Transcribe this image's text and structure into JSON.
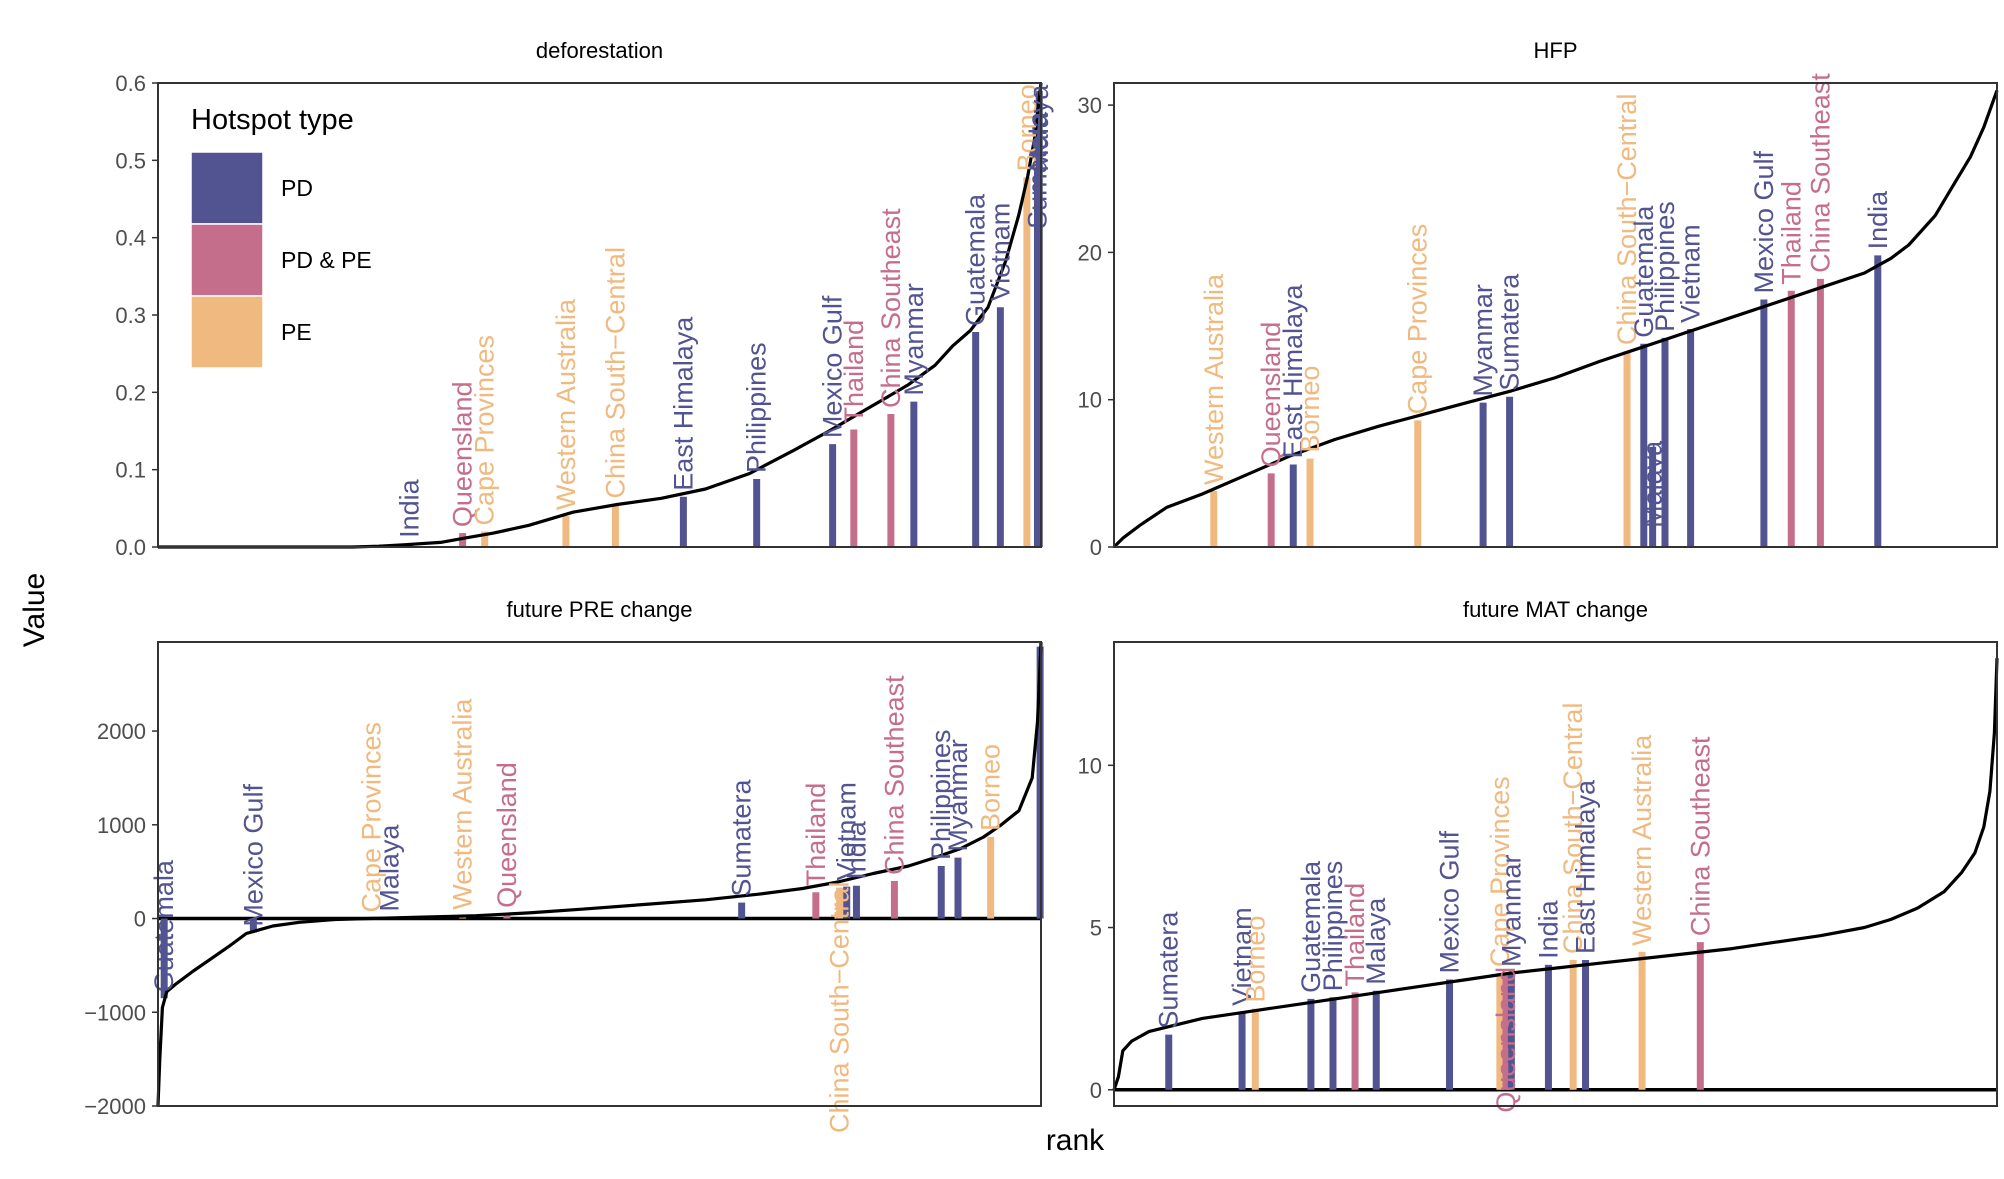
{
  "figure": {
    "y_axis_title": "Value",
    "x_axis_title": "rank"
  },
  "legend": {
    "title": "Hotspot type",
    "entries": [
      {
        "label": "PD",
        "color": "#525391"
      },
      {
        "label": "PD & PE",
        "color": "#C46E8C"
      },
      {
        "label": "PE",
        "color": "#F0B97F"
      }
    ]
  },
  "colors": {
    "PD": "#525391",
    "PD & PE": "#C46E8C",
    "PE": "#F0B97F",
    "curve": "#000000"
  },
  "chart_data": [
    {
      "type": "line",
      "title": "deforestation",
      "xlabel": "rank",
      "ylabel": "Value",
      "xlim": [
        0,
        1
      ],
      "ylim": [
        0,
        0.6
      ],
      "yticks": [
        0.0,
        0.1,
        0.2,
        0.3,
        0.4,
        0.5,
        0.6
      ],
      "ytick_labels": [
        "0.0",
        "0.1",
        "0.2",
        "0.3",
        "0.4",
        "0.5",
        "0.6"
      ],
      "curve": [
        [
          0,
          0
        ],
        [
          0.22,
          0
        ],
        [
          0.25,
          0.001
        ],
        [
          0.28,
          0.003
        ],
        [
          0.32,
          0.006
        ],
        [
          0.35,
          0.012
        ],
        [
          0.38,
          0.018
        ],
        [
          0.42,
          0.028
        ],
        [
          0.47,
          0.045
        ],
        [
          0.52,
          0.055
        ],
        [
          0.57,
          0.063
        ],
        [
          0.62,
          0.075
        ],
        [
          0.67,
          0.095
        ],
        [
          0.72,
          0.125
        ],
        [
          0.76,
          0.15
        ],
        [
          0.79,
          0.17
        ],
        [
          0.82,
          0.19
        ],
        [
          0.85,
          0.21
        ],
        [
          0.88,
          0.235
        ],
        [
          0.9,
          0.26
        ],
        [
          0.92,
          0.28
        ],
        [
          0.94,
          0.31
        ],
        [
          0.96,
          0.37
        ],
        [
          0.975,
          0.43
        ],
        [
          0.985,
          0.48
        ],
        [
          0.993,
          0.53
        ],
        [
          1.0,
          0.6
        ]
      ],
      "hotspots": [
        {
          "name": "India",
          "type": "PD",
          "rank": 0.285,
          "value": 0.004
        },
        {
          "name": "Queensland",
          "type": "PD & PE",
          "rank": 0.345,
          "value": 0.018
        },
        {
          "name": "Cape Provinces",
          "type": "PE",
          "rank": 0.37,
          "value": 0.02
        },
        {
          "name": "Western Australia",
          "type": "PE",
          "rank": 0.462,
          "value": 0.04
        },
        {
          "name": "China South−Central",
          "type": "PE",
          "rank": 0.518,
          "value": 0.055
        },
        {
          "name": "East Himalaya",
          "type": "PD",
          "rank": 0.595,
          "value": 0.065
        },
        {
          "name": "Philippines",
          "type": "PD",
          "rank": 0.678,
          "value": 0.088
        },
        {
          "name": "Mexico Gulf",
          "type": "PD",
          "rank": 0.764,
          "value": 0.133
        },
        {
          "name": "Thailand",
          "type": "PD & PE",
          "rank": 0.788,
          "value": 0.152
        },
        {
          "name": "China Southeast",
          "type": "PD & PE",
          "rank": 0.83,
          "value": 0.172
        },
        {
          "name": "Myanmar",
          "type": "PD",
          "rank": 0.856,
          "value": 0.188
        },
        {
          "name": "Guatemala",
          "type": "PD",
          "rank": 0.926,
          "value": 0.278
        },
        {
          "name": "Vietnam",
          "type": "PD",
          "rank": 0.954,
          "value": 0.31
        },
        {
          "name": "Borneo",
          "type": "PE",
          "rank": 0.984,
          "value": 0.478
        },
        {
          "name": "Sumatera",
          "type": "PD",
          "rank": 0.996,
          "value": 0.555,
          "label_anchor": "end"
        },
        {
          "name": "Malaya",
          "type": "PD",
          "rank": 0.998,
          "value": 0.59,
          "label_anchor": "end"
        }
      ]
    },
    {
      "type": "line",
      "title": "HFP",
      "xlabel": "rank",
      "ylabel": "Value",
      "xlim": [
        0,
        1
      ],
      "ylim": [
        0,
        31.5
      ],
      "yticks": [
        0,
        10,
        20,
        30
      ],
      "ytick_labels": [
        "0",
        "10",
        "20",
        "30"
      ],
      "curve": [
        [
          0,
          0
        ],
        [
          0.01,
          0.6
        ],
        [
          0.03,
          1.5
        ],
        [
          0.06,
          2.7
        ],
        [
          0.1,
          3.6
        ],
        [
          0.15,
          4.9
        ],
        [
          0.2,
          6.2
        ],
        [
          0.25,
          7.3
        ],
        [
          0.3,
          8.2
        ],
        [
          0.35,
          9.0
        ],
        [
          0.4,
          9.8
        ],
        [
          0.45,
          10.6
        ],
        [
          0.5,
          11.5
        ],
        [
          0.55,
          12.6
        ],
        [
          0.6,
          13.6
        ],
        [
          0.65,
          14.6
        ],
        [
          0.7,
          15.6
        ],
        [
          0.75,
          16.6
        ],
        [
          0.8,
          17.6
        ],
        [
          0.85,
          18.6
        ],
        [
          0.88,
          19.6
        ],
        [
          0.9,
          20.5
        ],
        [
          0.93,
          22.5
        ],
        [
          0.95,
          24.5
        ],
        [
          0.97,
          26.5
        ],
        [
          0.985,
          28.5
        ],
        [
          1.0,
          31.0
        ]
      ],
      "hotspots": [
        {
          "name": "Western Australia",
          "type": "PE",
          "rank": 0.113,
          "value": 3.8
        },
        {
          "name": "Queensland",
          "type": "PD & PE",
          "rank": 0.178,
          "value": 5.0
        },
        {
          "name": "East Himalaya",
          "type": "PD",
          "rank": 0.203,
          "value": 5.6
        },
        {
          "name": "Borneo",
          "type": "PE",
          "rank": 0.222,
          "value": 6.0
        },
        {
          "name": "Cape Provinces",
          "type": "PE",
          "rank": 0.344,
          "value": 8.6
        },
        {
          "name": "Myanmar",
          "type": "PD",
          "rank": 0.418,
          "value": 9.8
        },
        {
          "name": "Sumatera",
          "type": "PD",
          "rank": 0.448,
          "value": 10.2
        },
        {
          "name": "China South−Central",
          "type": "PE",
          "rank": 0.581,
          "value": 13.3
        },
        {
          "name": "Guatemala",
          "type": "PD",
          "rank": 0.6,
          "value": 13.8
        },
        {
          "name": "Malaya",
          "type": "PD",
          "rank": 0.61,
          "value": 6.8,
          "label_anchor": "end"
        },
        {
          "name": "Philippines",
          "type": "PD",
          "rank": 0.624,
          "value": 14.2
        },
        {
          "name": "Vietnam",
          "type": "PD",
          "rank": 0.653,
          "value": 14.8
        },
        {
          "name": "Mexico Gulf",
          "type": "PD",
          "rank": 0.736,
          "value": 16.8
        },
        {
          "name": "Thailand",
          "type": "PD & PE",
          "rank": 0.767,
          "value": 17.4
        },
        {
          "name": "China Southeast",
          "type": "PD & PE",
          "rank": 0.8,
          "value": 18.2
        },
        {
          "name": "India",
          "type": "PD",
          "rank": 0.865,
          "value": 19.8
        }
      ]
    },
    {
      "type": "line",
      "title": "future PRE change",
      "xlabel": "rank",
      "ylabel": "Value",
      "xlim": [
        0,
        1
      ],
      "ylim": [
        -2000,
        2950
      ],
      "yticks": [
        -2000,
        -1000,
        0,
        1000,
        2000
      ],
      "ytick_labels": [
        "−2000",
        "−1000",
        "0",
        "1000",
        "2000"
      ],
      "zero_line": true,
      "curve": [
        [
          0,
          -2000
        ],
        [
          0.002,
          -1500
        ],
        [
          0.005,
          -950
        ],
        [
          0.01,
          -780
        ],
        [
          0.02,
          -700
        ],
        [
          0.04,
          -560
        ],
        [
          0.06,
          -430
        ],
        [
          0.08,
          -300
        ],
        [
          0.1,
          -160
        ],
        [
          0.13,
          -80
        ],
        [
          0.16,
          -40
        ],
        [
          0.2,
          -10
        ],
        [
          0.24,
          0
        ],
        [
          0.3,
          15
        ],
        [
          0.36,
          30
        ],
        [
          0.42,
          60
        ],
        [
          0.48,
          100
        ],
        [
          0.55,
          150
        ],
        [
          0.62,
          200
        ],
        [
          0.68,
          260
        ],
        [
          0.73,
          320
        ],
        [
          0.77,
          390
        ],
        [
          0.81,
          480
        ],
        [
          0.85,
          560
        ],
        [
          0.88,
          650
        ],
        [
          0.91,
          750
        ],
        [
          0.935,
          870
        ],
        [
          0.955,
          1000
        ],
        [
          0.975,
          1150
        ],
        [
          0.99,
          1500
        ],
        [
          0.996,
          2100
        ],
        [
          1.0,
          2950
        ]
      ],
      "hotspots": [
        {
          "name": "Guatemala",
          "type": "PD",
          "rank": 0.007,
          "value": -850
        },
        {
          "name": "Mexico Gulf",
          "type": "PD",
          "rank": 0.108,
          "value": -150
        },
        {
          "name": "Cape Provinces",
          "type": "PE",
          "rank": 0.242,
          "value": 0
        },
        {
          "name": "Malaya",
          "type": "PD",
          "rank": 0.262,
          "value": 10
        },
        {
          "name": "Western Australia",
          "type": "PE",
          "rank": 0.345,
          "value": 30
        },
        {
          "name": "Queensland",
          "type": "PD & PE",
          "rank": 0.395,
          "value": 50
        },
        {
          "name": "Sumatera",
          "type": "PD",
          "rank": 0.661,
          "value": 170
        },
        {
          "name": "Thailand",
          "type": "PD & PE",
          "rank": 0.745,
          "value": 280
        },
        {
          "name": "China South−Central",
          "type": "PE",
          "rank": 0.772,
          "value": 330,
          "label_anchor": "end"
        },
        {
          "name": "Vietnam",
          "type": "PD",
          "rank": 0.78,
          "value": 340
        },
        {
          "name": "India",
          "type": "PD",
          "rank": 0.791,
          "value": 350
        },
        {
          "name": "China Southeast",
          "type": "PD & PE",
          "rank": 0.834,
          "value": 400
        },
        {
          "name": "Philippines",
          "type": "PD",
          "rank": 0.887,
          "value": 560
        },
        {
          "name": "Myanmar",
          "type": "PD",
          "rank": 0.906,
          "value": 650
        },
        {
          "name": "Borneo",
          "type": "PE",
          "rank": 0.943,
          "value": 870
        },
        {
          "name": "",
          "type": "PD",
          "rank": 0.999,
          "value": 2900
        }
      ]
    },
    {
      "type": "line",
      "title": "future MAT change",
      "xlabel": "rank",
      "ylabel": "Value",
      "xlim": [
        0,
        1
      ],
      "ylim": [
        -0.5,
        13.8
      ],
      "yticks": [
        0,
        5,
        10
      ],
      "ytick_labels": [
        "0",
        "5",
        "10"
      ],
      "zero_line": true,
      "curve": [
        [
          0,
          0
        ],
        [
          0.005,
          0.4
        ],
        [
          0.01,
          1.2
        ],
        [
          0.02,
          1.5
        ],
        [
          0.04,
          1.8
        ],
        [
          0.07,
          2.0
        ],
        [
          0.1,
          2.2
        ],
        [
          0.15,
          2.4
        ],
        [
          0.2,
          2.6
        ],
        [
          0.25,
          2.8
        ],
        [
          0.3,
          3.0
        ],
        [
          0.35,
          3.2
        ],
        [
          0.4,
          3.4
        ],
        [
          0.45,
          3.6
        ],
        [
          0.5,
          3.75
        ],
        [
          0.55,
          3.9
        ],
        [
          0.6,
          4.05
        ],
        [
          0.65,
          4.2
        ],
        [
          0.7,
          4.35
        ],
        [
          0.75,
          4.55
        ],
        [
          0.8,
          4.75
        ],
        [
          0.85,
          5.0
        ],
        [
          0.88,
          5.25
        ],
        [
          0.91,
          5.6
        ],
        [
          0.94,
          6.1
        ],
        [
          0.96,
          6.7
        ],
        [
          0.975,
          7.3
        ],
        [
          0.985,
          8.1
        ],
        [
          0.992,
          9.2
        ],
        [
          0.997,
          11.0
        ],
        [
          1.0,
          13.3
        ]
      ],
      "hotspots": [
        {
          "name": "Sumatera",
          "type": "PD",
          "rank": 0.062,
          "value": 1.7
        },
        {
          "name": "Vietnam",
          "type": "PD",
          "rank": 0.145,
          "value": 2.4
        },
        {
          "name": "Borneo",
          "type": "PE",
          "rank": 0.16,
          "value": 2.5
        },
        {
          "name": "Guatemala",
          "type": "PD",
          "rank": 0.223,
          "value": 2.8
        },
        {
          "name": "Philippines",
          "type": "PD",
          "rank": 0.248,
          "value": 2.85
        },
        {
          "name": "Thailand",
          "type": "PD & PE",
          "rank": 0.273,
          "value": 3.0
        },
        {
          "name": "Malaya",
          "type": "PD",
          "rank": 0.297,
          "value": 3.05
        },
        {
          "name": "Mexico Gulf",
          "type": "PD",
          "rank": 0.38,
          "value": 3.4
        },
        {
          "name": "Cape Provinces",
          "type": "PE",
          "rank": 0.437,
          "value": 3.6
        },
        {
          "name": "Queensland",
          "type": "PD & PE",
          "rank": 0.444,
          "value": 3.6,
          "label_anchor": "end"
        },
        {
          "name": "Myanmar",
          "type": "PD",
          "rank": 0.45,
          "value": 3.6
        },
        {
          "name": "India",
          "type": "PD",
          "rank": 0.492,
          "value": 3.85
        },
        {
          "name": "China South−Central",
          "type": "PE",
          "rank": 0.52,
          "value": 4.0
        },
        {
          "name": "East Himalaya",
          "type": "PD",
          "rank": 0.534,
          "value": 4.0
        },
        {
          "name": "Western Australia",
          "type": "PE",
          "rank": 0.598,
          "value": 4.25
        },
        {
          "name": "China Southeast",
          "type": "PD & PE",
          "rank": 0.664,
          "value": 4.55
        }
      ]
    }
  ]
}
